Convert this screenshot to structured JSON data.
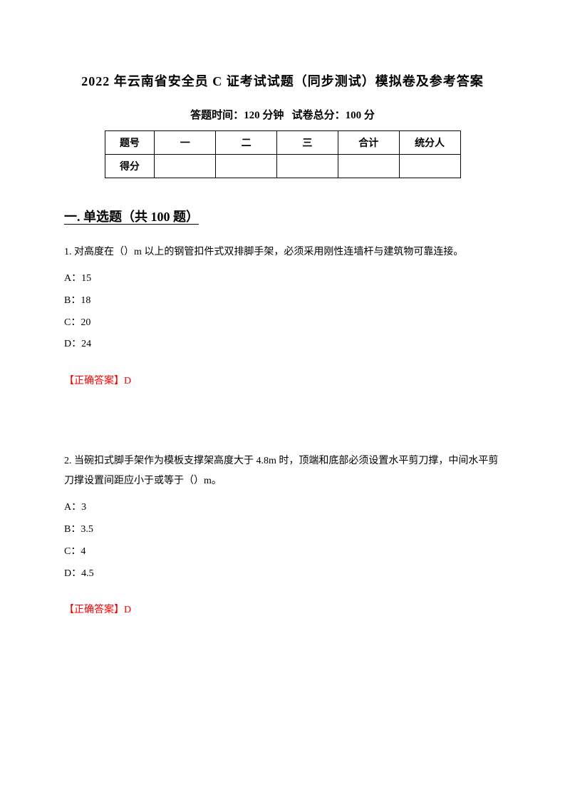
{
  "title": "2022 年云南省安全员 C 证考试试题（同步测试）模拟卷及参考答案",
  "subtitle_time_label": "答题时间：",
  "subtitle_time_value": "120 分钟",
  "subtitle_score_label": "试卷总分：",
  "subtitle_score_value": "100 分",
  "score_table": {
    "row1": {
      "label": "题号",
      "c1": "一",
      "c2": "二",
      "c3": "三",
      "c4": "合计",
      "c5": "统分人"
    },
    "row2": {
      "label": "得分",
      "c1": "",
      "c2": "",
      "c3": "",
      "c4": "",
      "c5": ""
    }
  },
  "section_header": "一. 单选题（共 100 题）",
  "q1": {
    "text": "1. 对高度在（）m 以上的钢管扣件式双排脚手架，必须采用刚性连墙杆与建筑物可靠连接。",
    "optA": "A：15",
    "optB": "B：18",
    "optC": "C：20",
    "optD": "D：24",
    "answer": "【正确答案】D"
  },
  "q2": {
    "text": "2. 当碗扣式脚手架作为模板支撑架高度大于 4.8m 时，顶端和底部必须设置水平剪刀撑，中间水平剪刀撑设置间距应小于或等于（）m。",
    "optA": "A：3",
    "optB": "B：3.5",
    "optC": "C：4",
    "optD": "D：4.5",
    "answer": "【正确答案】D"
  },
  "colors": {
    "text": "#000000",
    "answer": "#ff0000",
    "background": "#ffffff",
    "border": "#000000"
  }
}
